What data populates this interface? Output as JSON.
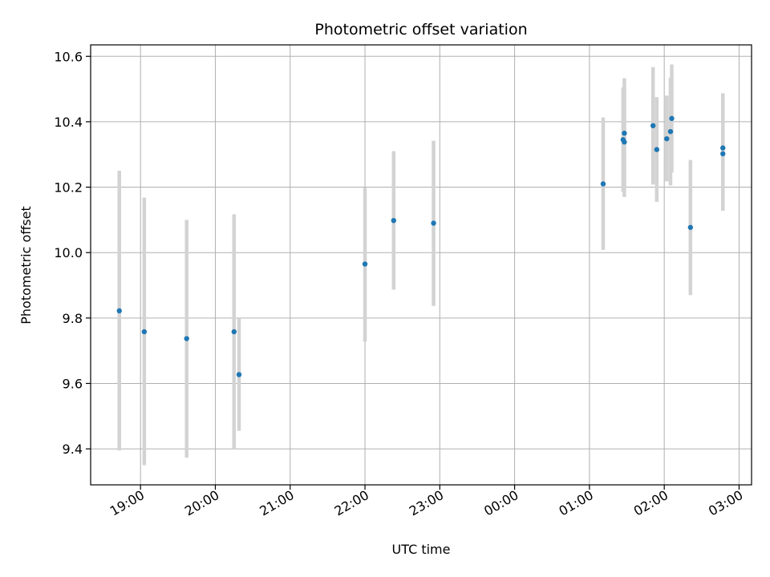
{
  "chart_data": {
    "type": "scatter",
    "title": "Photometric offset variation",
    "xlabel": "UTC time",
    "ylabel": "Photometric offset",
    "x_unit": "UTC time of night (hours, 24 = 00:00 of next day)",
    "xlim": [
      "18:20",
      "03:10"
    ],
    "ylim": [
      9.29,
      10.635
    ],
    "x_ticks": [
      "19:00",
      "20:00",
      "21:00",
      "22:00",
      "23:00",
      "00:00",
      "01:00",
      "02:00",
      "03:00"
    ],
    "y_ticks": [
      "9.4",
      "9.6",
      "9.8",
      "10.0",
      "10.2",
      "10.4",
      "10.6"
    ],
    "grid": true,
    "colors": {
      "marker": "#1f77b4",
      "errorbar": "#d3d3d3",
      "grid": "#b0b0b0"
    },
    "points": [
      {
        "time": "18:43",
        "y": 9.822,
        "ylow": 9.395,
        "yhigh": 10.25
      },
      {
        "time": "19:03",
        "y": 9.758,
        "ylow": 9.35,
        "yhigh": 10.168
      },
      {
        "time": "19:37",
        "y": 9.737,
        "ylow": 9.373,
        "yhigh": 10.1
      },
      {
        "time": "20:15",
        "y": 9.758,
        "ylow": 9.4,
        "yhigh": 10.117
      },
      {
        "time": "20:19",
        "y": 9.627,
        "ylow": 9.455,
        "yhigh": 9.8
      },
      {
        "time": "22:00",
        "y": 9.965,
        "ylow": 9.728,
        "yhigh": 10.198
      },
      {
        "time": "22:23",
        "y": 10.098,
        "ylow": 9.887,
        "yhigh": 10.31
      },
      {
        "time": "22:55",
        "y": 10.09,
        "ylow": 9.837,
        "yhigh": 10.342
      },
      {
        "time": "01:11",
        "y": 10.21,
        "ylow": 10.008,
        "yhigh": 10.413
      },
      {
        "time": "01:27",
        "y": 10.345,
        "ylow": 10.185,
        "yhigh": 10.505
      },
      {
        "time": "01:28",
        "y": 10.338,
        "ylow": 10.17,
        "yhigh": 10.505
      },
      {
        "time": "01:28",
        "y": 10.365,
        "ylow": 10.198,
        "yhigh": 10.533
      },
      {
        "time": "01:51",
        "y": 10.388,
        "ylow": 10.208,
        "yhigh": 10.567
      },
      {
        "time": "01:54",
        "y": 10.315,
        "ylow": 10.155,
        "yhigh": 10.475
      },
      {
        "time": "02:02",
        "y": 10.348,
        "ylow": 10.218,
        "yhigh": 10.48
      },
      {
        "time": "02:05",
        "y": 10.37,
        "ylow": 10.205,
        "yhigh": 10.535
      },
      {
        "time": "02:06",
        "y": 10.41,
        "ylow": 10.245,
        "yhigh": 10.575
      },
      {
        "time": "02:21",
        "y": 10.077,
        "ylow": 9.87,
        "yhigh": 10.283
      },
      {
        "time": "02:47",
        "y": 10.302,
        "ylow": 10.128,
        "yhigh": 10.475
      },
      {
        "time": "02:47",
        "y": 10.32,
        "ylow": 10.158,
        "yhigh": 10.487
      }
    ]
  }
}
